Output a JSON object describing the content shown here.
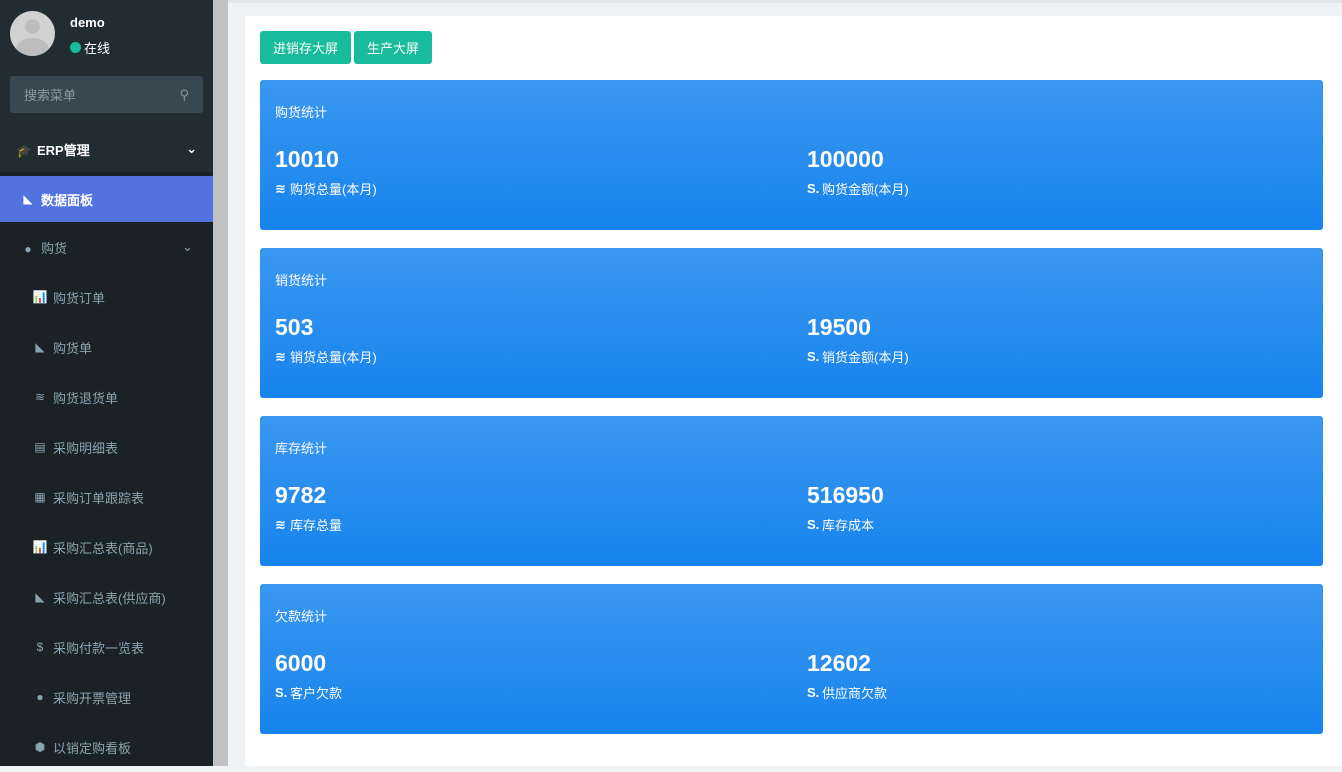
{
  "user": {
    "name": "demo",
    "status": "在线"
  },
  "search": {
    "placeholder": "搜索菜单"
  },
  "menu": {
    "section": "ERP管理",
    "active": "数据面板",
    "group": "购货",
    "items": [
      {
        "icon": "bar-chart-icon",
        "glyph": "📊",
        "label": "购货订单"
      },
      {
        "icon": "area-chart-icon",
        "glyph": "◣",
        "label": "购货单"
      },
      {
        "icon": "database-icon",
        "glyph": "≋",
        "label": "购货退货单"
      },
      {
        "icon": "file-icon",
        "glyph": "▤",
        "label": "采购明细表"
      },
      {
        "icon": "building-icon",
        "glyph": "▦",
        "label": "采购订单跟踪表"
      },
      {
        "icon": "bar-chart-icon",
        "glyph": "📊",
        "label": "采购汇总表(商品)"
      },
      {
        "icon": "area-chart-icon",
        "glyph": "◣",
        "label": "采购汇总表(供应商)"
      },
      {
        "icon": "dollar-icon",
        "glyph": "$",
        "label": "采购付款一览表"
      },
      {
        "icon": "compass-icon",
        "glyph": "●",
        "label": "采购开票管理"
      },
      {
        "icon": "cube-icon",
        "glyph": "⬢",
        "label": "以销定购看板"
      }
    ]
  },
  "buttons": [
    "进销存大屏",
    "生产大屏"
  ],
  "cards": [
    {
      "title": "购货统计",
      "left": {
        "value": "10010",
        "label": "购货总量(本月)",
        "icon": "database-icon"
      },
      "right": {
        "value": "100000",
        "label": "购货金额(本月)",
        "icon": "money-icon"
      }
    },
    {
      "title": "销货统计",
      "left": {
        "value": "503",
        "label": "销货总量(本月)",
        "icon": "database-icon"
      },
      "right": {
        "value": "19500",
        "label": "销货金额(本月)",
        "icon": "money-icon"
      }
    },
    {
      "title": "库存统计",
      "left": {
        "value": "9782",
        "label": "库存总量",
        "icon": "database-icon"
      },
      "right": {
        "value": "516950",
        "label": "库存成本",
        "icon": "money-icon"
      }
    },
    {
      "title": "欠款统计",
      "left": {
        "value": "6000",
        "label": "客户欠款",
        "icon": "money-icon"
      },
      "right": {
        "value": "12602",
        "label": "供应商欠款",
        "icon": "money-icon"
      }
    }
  ],
  "colors": {
    "sidebar": "#1a2226",
    "active": "#5172df",
    "button": "#18bc9c",
    "card": "#2a8cf0"
  }
}
